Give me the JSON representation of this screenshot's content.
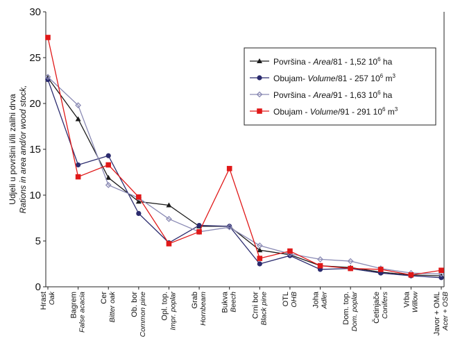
{
  "chart_data": {
    "type": "line",
    "ylabel": "Udjeli u površini i/ili zalihi drva",
    "ylabel_en": "Rations in area and/or wood stock,",
    "ylim": [
      0,
      30
    ],
    "yticks": [
      0,
      5,
      10,
      15,
      20,
      25,
      30
    ],
    "grid": false,
    "legend_position": "top-right",
    "categories": [
      {
        "hr": "Hrast",
        "en": "Oak"
      },
      {
        "hr": "Bagrem",
        "en": "False acacia"
      },
      {
        "hr": "Cer",
        "en": "Bitter oak"
      },
      {
        "hr": "Ob. bor",
        "en": "Common pine"
      },
      {
        "hr": "Opl. top.",
        "en": "Impr. poplar"
      },
      {
        "hr": "Grab",
        "en": "Hornbeam"
      },
      {
        "hr": "Bukva",
        "en": "Beech"
      },
      {
        "hr": "Crni bor",
        "en": "Black pine"
      },
      {
        "hr": "OTL",
        "en": "OHB"
      },
      {
        "hr": "Joha",
        "en": "Adler"
      },
      {
        "hr": "Dom. top.",
        "en": "Dom. poplar"
      },
      {
        "hr": "Četinjače",
        "en": "Conifers"
      },
      {
        "hr": "Vrba",
        "en": "Willow"
      },
      {
        "hr": "Javor + OML",
        "en": "Acer + OSB"
      }
    ],
    "series": [
      {
        "legend": {
          "pre": "Površina - ",
          "it": "Area",
          "post": "/81 - 1,52 10",
          "sup": "6",
          "post2": " ha"
        },
        "color": "#1a1a1a",
        "marker": "triangle",
        "values": [
          22.8,
          18.3,
          11.9,
          9.3,
          8.9,
          6.6,
          6.6,
          4.0,
          3.5,
          2.3,
          2.1,
          1.6,
          1.3,
          1.2
        ]
      },
      {
        "legend": {
          "pre": "Obujam- ",
          "it": "Volume",
          "post": "/81 - 257 10",
          "sup": "6",
          "post2": " m",
          "sup2": "3"
        },
        "color": "#2b2b6e",
        "marker": "circle",
        "values": [
          22.6,
          13.3,
          14.3,
          8.0,
          4.8,
          6.7,
          6.6,
          2.5,
          3.4,
          1.9,
          2.0,
          1.5,
          1.2,
          1.0
        ]
      },
      {
        "legend": {
          "pre": "Površina - ",
          "it": "Area",
          "post": "/91 - 1,63 10",
          "sup": "6",
          "post2": " ha"
        },
        "color": "#8a8ab4",
        "marker": "diamond",
        "values": [
          22.9,
          19.8,
          11.1,
          9.7,
          7.4,
          6.0,
          6.5,
          4.5,
          3.6,
          3.0,
          2.8,
          2.0,
          1.5,
          1.4
        ]
      },
      {
        "legend": {
          "pre": "Obujam - ",
          "it": "Volume",
          "post": "/91 - 291 10",
          "sup": "6",
          "post2": " m",
          "sup2": "3"
        },
        "color": "#e01818",
        "marker": "square",
        "values": [
          27.2,
          12.0,
          13.3,
          9.8,
          4.7,
          6.0,
          12.9,
          3.1,
          3.9,
          2.3,
          2.0,
          1.9,
          1.3,
          1.8
        ]
      }
    ]
  }
}
